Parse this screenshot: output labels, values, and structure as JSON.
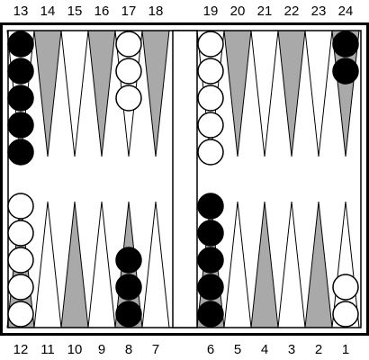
{
  "colors": {
    "background": "#ffffff",
    "board_line": "#000000",
    "point_dark": "#a9a9a9",
    "point_light": "#ffffff",
    "checker_black": "#000000",
    "checker_white": "#ffffff"
  },
  "board": {
    "top_labels": [
      "13",
      "14",
      "15",
      "16",
      "17",
      "18",
      "19",
      "20",
      "21",
      "22",
      "23",
      "24"
    ],
    "bottom_labels": [
      "12",
      "11",
      "10",
      "9",
      "8",
      "7",
      "6",
      "5",
      "4",
      "3",
      "2",
      "1"
    ],
    "points": {
      "1": {
        "checker": "white",
        "count": 2
      },
      "6": {
        "checker": "black",
        "count": 5
      },
      "8": {
        "checker": "black",
        "count": 3
      },
      "12": {
        "checker": "white",
        "count": 5
      },
      "13": {
        "checker": "black",
        "count": 5
      },
      "17": {
        "checker": "white",
        "count": 3
      },
      "19": {
        "checker": "white",
        "count": 5
      },
      "24": {
        "checker": "black",
        "count": 2
      }
    }
  }
}
